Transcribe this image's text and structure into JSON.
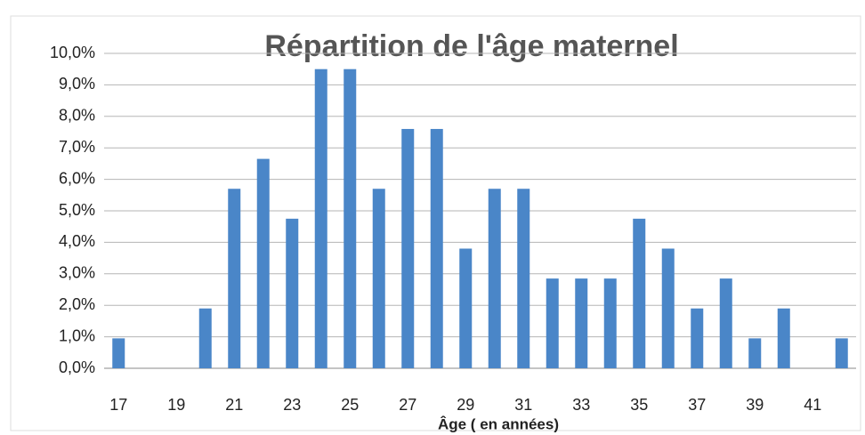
{
  "chart_data": {
    "type": "bar",
    "title": "Répartition de l'âge maternel",
    "x_label": "Âge ( en années)",
    "categories": [
      "17",
      null,
      "19",
      null,
      "21",
      null,
      "23",
      null,
      "25",
      null,
      "27",
      null,
      "29",
      null,
      "31",
      null,
      "33",
      null,
      "35",
      null,
      "37",
      null,
      "39",
      null,
      "41",
      null
    ],
    "values": [
      0.95,
      0,
      0,
      1.9,
      5.7,
      6.65,
      4.75,
      9.5,
      9.5,
      5.7,
      7.6,
      7.6,
      3.8,
      5.7,
      5.7,
      2.85,
      2.85,
      2.85,
      4.75,
      3.8,
      1.9,
      2.85,
      0.95,
      1.9,
      0,
      0.95
    ],
    "color": "#4a86c8",
    "ylim": [
      0,
      10
    ],
    "yticks": [
      {
        "value": 0,
        "label": "0,0%"
      },
      {
        "value": 1,
        "label": "1,0%"
      },
      {
        "value": 2,
        "label": "2,0%"
      },
      {
        "value": 3,
        "label": "3,0%"
      },
      {
        "value": 4,
        "label": "4,0%"
      },
      {
        "value": 5,
        "label": "5,0%"
      },
      {
        "value": 6,
        "label": "6,0%"
      },
      {
        "value": 7,
        "label": "7,0%"
      },
      {
        "value": 8,
        "label": "8,0%"
      },
      {
        "value": 9,
        "label": "9,0%"
      },
      {
        "value": 10,
        "label": "10,0%"
      }
    ],
    "grid": true
  }
}
